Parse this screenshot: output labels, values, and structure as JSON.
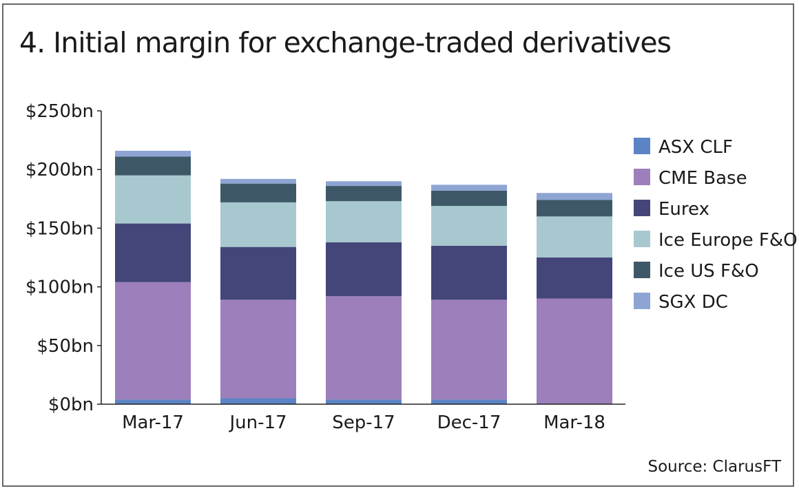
{
  "chart_data": {
    "type": "bar",
    "stacked": true,
    "title": "4. Initial margin for exchange-traded derivatives",
    "source": "Source: ClarusFT",
    "categories": [
      "Mar-17",
      "Jun-17",
      "Sep-17",
      "Dec-17",
      "Mar-18"
    ],
    "ylim": [
      0,
      250
    ],
    "yticks": [
      0,
      50,
      100,
      150,
      200,
      250
    ],
    "ytick_labels": [
      "$0bn",
      "$50bn",
      "$100bn",
      "$150bn",
      "$200bn",
      "$250bn"
    ],
    "ylabel": "",
    "xlabel": "",
    "legend_position": "right",
    "series": [
      {
        "name": "ASX CLF",
        "color": "#5b84c4",
        "values": [
          4,
          5,
          4,
          4,
          0
        ]
      },
      {
        "name": "CME Base",
        "color": "#9d7fbb",
        "values": [
          100,
          84,
          88,
          85,
          90
        ]
      },
      {
        "name": "Eurex",
        "color": "#44467a",
        "values": [
          50,
          45,
          46,
          46,
          35
        ]
      },
      {
        "name": "Ice Europe F&O",
        "color": "#a7c8cf",
        "values": [
          41,
          38,
          35,
          34,
          35
        ]
      },
      {
        "name": "Ice US F&O",
        "color": "#3e5868",
        "values": [
          16,
          16,
          13,
          13,
          14
        ]
      },
      {
        "name": "SGX DC",
        "color": "#8ea5d3",
        "values": [
          5,
          4,
          4,
          5,
          6
        ]
      }
    ]
  }
}
